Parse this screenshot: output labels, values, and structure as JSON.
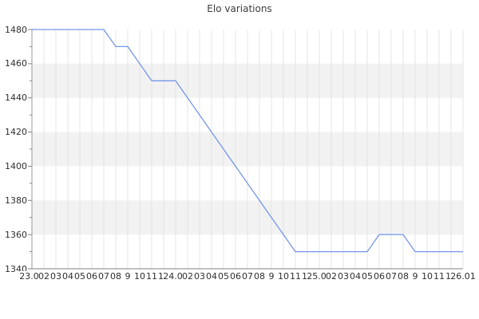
{
  "chart_data": {
    "type": "line",
    "title": "Elo variations",
    "xlabel": "",
    "ylabel": "",
    "x_labels": [
      "23.01",
      "02",
      "03",
      "04",
      "05",
      "06",
      "07",
      "08",
      "9",
      "10",
      "11",
      "12",
      "24.01",
      "02",
      "03",
      "04",
      "05",
      "06",
      "07",
      "08",
      "9",
      "10",
      "11",
      "12",
      "25.01",
      "02",
      "03",
      "04",
      "05",
      "06",
      "07",
      "08",
      "9",
      "10",
      "11",
      "12",
      "26.01"
    ],
    "values": [
      1480,
      1480,
      1480,
      1480,
      1480,
      1480,
      1480,
      1470,
      1470,
      1460,
      1450,
      1450,
      1450,
      1440,
      1430,
      1420,
      1410,
      1400,
      1390,
      1380,
      1370,
      1360,
      1350,
      1350,
      1350,
      1350,
      1350,
      1350,
      1350,
      1360,
      1360,
      1360,
      1350,
      1350,
      1350,
      1350,
      1350
    ],
    "ylim": [
      1340,
      1480
    ],
    "ytick_labels": [
      "1480",
      "1460",
      "1440",
      "1420",
      "1400",
      "1380",
      "1360",
      "1340"
    ],
    "ytick_step": 20,
    "ytick_minor_step": 10,
    "grid": "vertical-gridlines-and-alternating-horizontal-bands",
    "legend_position": "none",
    "colors": {
      "line": "#7396e9",
      "band": "#f2f2f2",
      "gridline": "#e4e4e4",
      "axis_x": "#808080",
      "axis_y": "#999999",
      "tick": "#808080",
      "text": "#2e2e2e",
      "title": "#3c3c3c",
      "background": "#ffffff"
    }
  }
}
